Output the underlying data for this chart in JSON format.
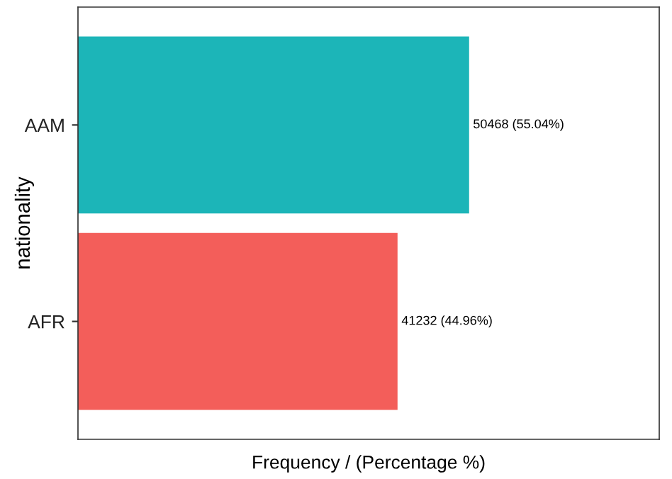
{
  "chart_data": {
    "type": "bar",
    "orientation": "horizontal",
    "xlabel": "Frequency / (Percentage %)",
    "ylabel": "nationality",
    "categories": [
      "AAM",
      "AFR"
    ],
    "values": [
      50468,
      41232
    ],
    "colors": [
      "#1cb5b8",
      "#f35e5a"
    ],
    "value_labels": [
      "50468 (55.04%)",
      "41232 (44.96%)"
    ],
    "xlim": [
      0,
      75000
    ],
    "tick_labels": "y",
    "grid": false,
    "legend": false
  }
}
